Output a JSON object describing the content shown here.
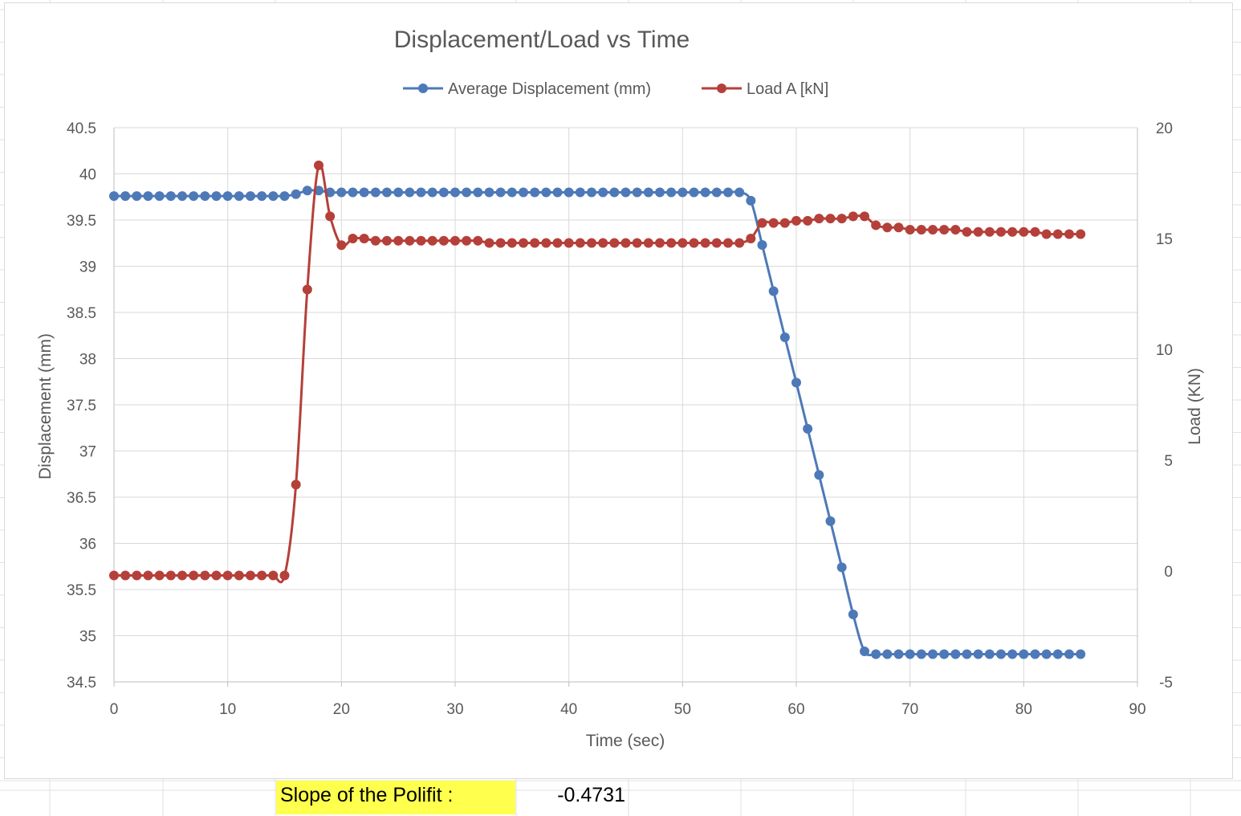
{
  "colors": {
    "displacement": "#4e79b8",
    "load": "#b5403a",
    "gridline": "#d9d9d9",
    "text": "#595959",
    "highlight": "#ffff4d"
  },
  "sheet": {
    "slope_label": "Slope of the Polifit :",
    "slope_value": "-0.4731"
  },
  "chart_data": {
    "type": "line",
    "title": "Displacement/Load vs Time",
    "xlabel": "Time (sec)",
    "ylabel": "Displacement (mm)",
    "y2label": "Load (KN)",
    "xlim": [
      0,
      90
    ],
    "ylim": [
      34.5,
      40.5
    ],
    "y2lim": [
      -5,
      20
    ],
    "xticks": [
      "0",
      "10",
      "20",
      "30",
      "40",
      "50",
      "60",
      "70",
      "80",
      "90"
    ],
    "yticks": [
      "34.5",
      "35",
      "35.5",
      "36",
      "36.5",
      "37",
      "37.5",
      "38",
      "38.5",
      "39",
      "39.5",
      "40",
      "40.5"
    ],
    "y2ticks": [
      "-5",
      "0",
      "5",
      "10",
      "15",
      "20"
    ],
    "grid": true,
    "legend_position": "top",
    "series": [
      {
        "name": "Average Displacement (mm)",
        "axis": "left",
        "color_key": "displacement",
        "x": [
          0,
          1,
          2,
          3,
          4,
          5,
          6,
          7,
          8,
          9,
          10,
          11,
          12,
          13,
          14,
          15,
          16,
          17,
          18,
          19,
          20,
          21,
          22,
          23,
          24,
          25,
          26,
          27,
          28,
          29,
          30,
          31,
          32,
          33,
          34,
          35,
          36,
          37,
          38,
          39,
          40,
          41,
          42,
          43,
          44,
          45,
          46,
          47,
          48,
          49,
          50,
          51,
          52,
          53,
          54,
          55,
          56,
          57,
          58,
          59,
          60,
          61,
          62,
          63,
          64,
          65,
          66,
          67,
          68,
          69,
          70,
          71,
          72,
          73,
          74,
          75,
          76,
          77,
          78,
          79,
          80,
          81,
          82,
          83,
          84,
          85
        ],
        "values": [
          39.76,
          39.76,
          39.76,
          39.76,
          39.76,
          39.76,
          39.76,
          39.76,
          39.76,
          39.76,
          39.76,
          39.76,
          39.76,
          39.76,
          39.76,
          39.76,
          39.78,
          39.82,
          39.82,
          39.8,
          39.8,
          39.8,
          39.8,
          39.8,
          39.8,
          39.8,
          39.8,
          39.8,
          39.8,
          39.8,
          39.8,
          39.8,
          39.8,
          39.8,
          39.8,
          39.8,
          39.8,
          39.8,
          39.8,
          39.8,
          39.8,
          39.8,
          39.8,
          39.8,
          39.8,
          39.8,
          39.8,
          39.8,
          39.8,
          39.8,
          39.8,
          39.8,
          39.8,
          39.8,
          39.8,
          39.8,
          39.71,
          39.23,
          38.73,
          38.23,
          37.74,
          37.24,
          36.74,
          36.24,
          35.74,
          35.23,
          34.83,
          34.8,
          34.8,
          34.8,
          34.8,
          34.8,
          34.8,
          34.8,
          34.8,
          34.8,
          34.8,
          34.8,
          34.8,
          34.8,
          34.8,
          34.8,
          34.8,
          34.8,
          34.8,
          34.8
        ]
      },
      {
        "name": "Load A [kN]",
        "axis": "right",
        "color_key": "load",
        "x": [
          0,
          1,
          2,
          3,
          4,
          5,
          6,
          7,
          8,
          9,
          10,
          11,
          12,
          13,
          14,
          15,
          16,
          17,
          18,
          19,
          20,
          21,
          22,
          23,
          24,
          25,
          26,
          27,
          28,
          29,
          30,
          31,
          32,
          33,
          34,
          35,
          36,
          37,
          38,
          39,
          40,
          41,
          42,
          43,
          44,
          45,
          46,
          47,
          48,
          49,
          50,
          51,
          52,
          53,
          54,
          55,
          56,
          57,
          58,
          59,
          60,
          61,
          62,
          63,
          64,
          65,
          66,
          67,
          68,
          69,
          70,
          71,
          72,
          73,
          74,
          75,
          76,
          77,
          78,
          79,
          80,
          81,
          82,
          83,
          84,
          85
        ],
        "values": [
          -0.2,
          -0.2,
          -0.2,
          -0.2,
          -0.2,
          -0.2,
          -0.2,
          -0.2,
          -0.2,
          -0.2,
          -0.2,
          -0.2,
          -0.2,
          -0.2,
          -0.2,
          -0.2,
          3.9,
          12.7,
          18.3,
          16.0,
          14.7,
          15.0,
          15.0,
          14.9,
          14.9,
          14.9,
          14.9,
          14.9,
          14.9,
          14.9,
          14.9,
          14.9,
          14.9,
          14.8,
          14.8,
          14.8,
          14.8,
          14.8,
          14.8,
          14.8,
          14.8,
          14.8,
          14.8,
          14.8,
          14.8,
          14.8,
          14.8,
          14.8,
          14.8,
          14.8,
          14.8,
          14.8,
          14.8,
          14.8,
          14.8,
          14.8,
          15.0,
          15.7,
          15.7,
          15.7,
          15.8,
          15.8,
          15.9,
          15.9,
          15.9,
          16.0,
          16.0,
          15.6,
          15.5,
          15.5,
          15.4,
          15.4,
          15.4,
          15.4,
          15.4,
          15.3,
          15.3,
          15.3,
          15.3,
          15.3,
          15.3,
          15.3,
          15.2,
          15.2,
          15.2,
          15.2
        ]
      }
    ]
  }
}
